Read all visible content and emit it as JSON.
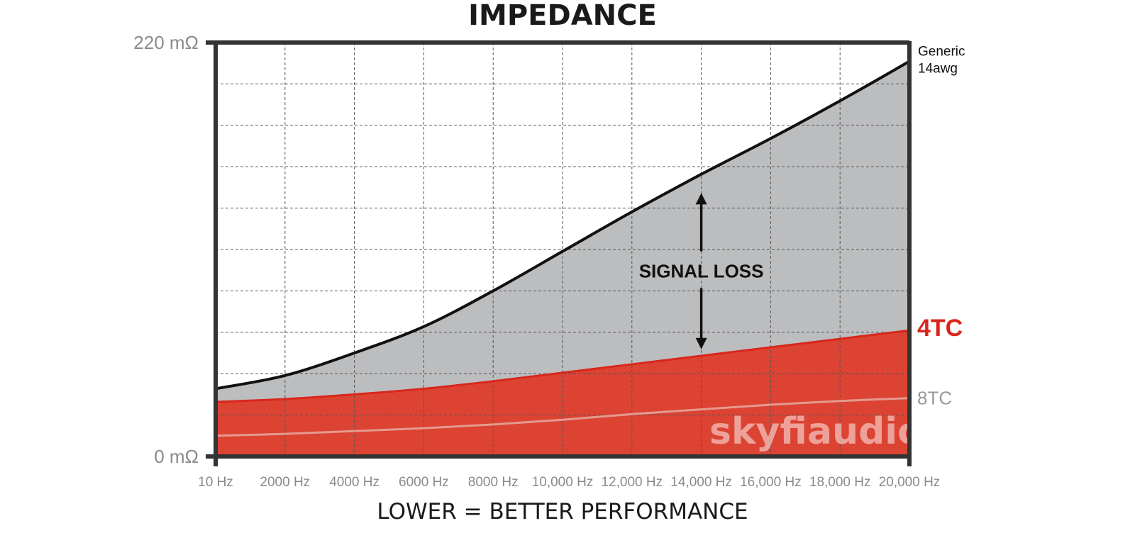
{
  "chart_data": {
    "type": "area",
    "title": "IMPEDANCE",
    "xlabel": "LOWER = BETTER PERFORMANCE",
    "x_ticks": [
      "10 Hz",
      "2000 Hz",
      "4000 Hz",
      "6000 Hz",
      "8000 Hz",
      "10,000 Hz",
      "12,000 Hz",
      "14,000 Hz",
      "16,000 Hz",
      "18,000 Hz",
      "20,000 Hz"
    ],
    "y_ticks": [
      "0 mΩ",
      "220 mΩ"
    ],
    "xlim": [
      10,
      20000
    ],
    "ylim": [
      0,
      220
    ],
    "grid": true,
    "x": [
      10,
      2000,
      4000,
      6000,
      8000,
      10000,
      12000,
      14000,
      16000,
      18000,
      20000
    ],
    "series": [
      {
        "name": "Generic\n14awg",
        "name_lines": [
          "Generic",
          "14awg"
        ],
        "color": "#111111",
        "fill": "#bcbdbf",
        "values": [
          36,
          43,
          55,
          69,
          88,
          109,
          130,
          150,
          169,
          189,
          210
        ]
      },
      {
        "name": "4TC",
        "color": "#d9261c",
        "fill": "#dc4332",
        "values": [
          29,
          30.5,
          33,
          36,
          40,
          44.5,
          49,
          53.5,
          58,
          62.5,
          67
        ]
      },
      {
        "name": "8TC",
        "color": "#e49a90",
        "fill": "none",
        "values": [
          11,
          12,
          13.5,
          15,
          17,
          19.5,
          22.5,
          25,
          27.5,
          29.5,
          31
        ]
      }
    ],
    "annotations": [
      {
        "text": "SIGNAL LOSS",
        "x": 14000,
        "y_from": 57,
        "y_to": 140
      }
    ],
    "watermark": "skyfiaudio"
  },
  "colors": {
    "axis": "#333333",
    "gridline": "#555555"
  }
}
